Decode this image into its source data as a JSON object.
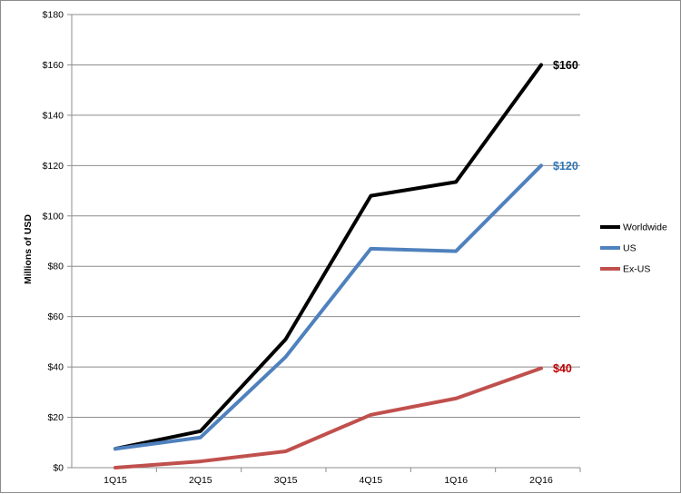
{
  "chart_data": {
    "type": "line",
    "title": "",
    "xlabel": "",
    "ylabel": "Millions of USD",
    "categories": [
      "1Q15",
      "2Q15",
      "3Q15",
      "4Q15",
      "1Q16",
      "2Q16"
    ],
    "ylim": [
      0,
      180
    ],
    "yticks": [
      0,
      20,
      40,
      60,
      80,
      100,
      120,
      140,
      160,
      180
    ],
    "ytick_labels": [
      "$0",
      "$20",
      "$40",
      "$60",
      "$80",
      "$100",
      "$120",
      "$140",
      "$160",
      "$180"
    ],
    "grid": "horizontal",
    "legend_position": "right",
    "series": [
      {
        "name": "Worldwide",
        "color": "#000000",
        "values": [
          7.5,
          14.5,
          51,
          108,
          113.5,
          160
        ],
        "end_label": "$160"
      },
      {
        "name": "US",
        "color": "#4f81bd",
        "values": [
          7.5,
          12,
          44,
          87,
          86,
          120
        ],
        "end_label": "$120"
      },
      {
        "name": "Ex-US",
        "color": "#c0504d",
        "values": [
          0,
          2.5,
          6.5,
          21,
          27.5,
          39.5
        ],
        "end_label": "$40"
      }
    ],
    "end_label_colors": [
      "#000000",
      "#2f74b5",
      "#c00000"
    ]
  }
}
